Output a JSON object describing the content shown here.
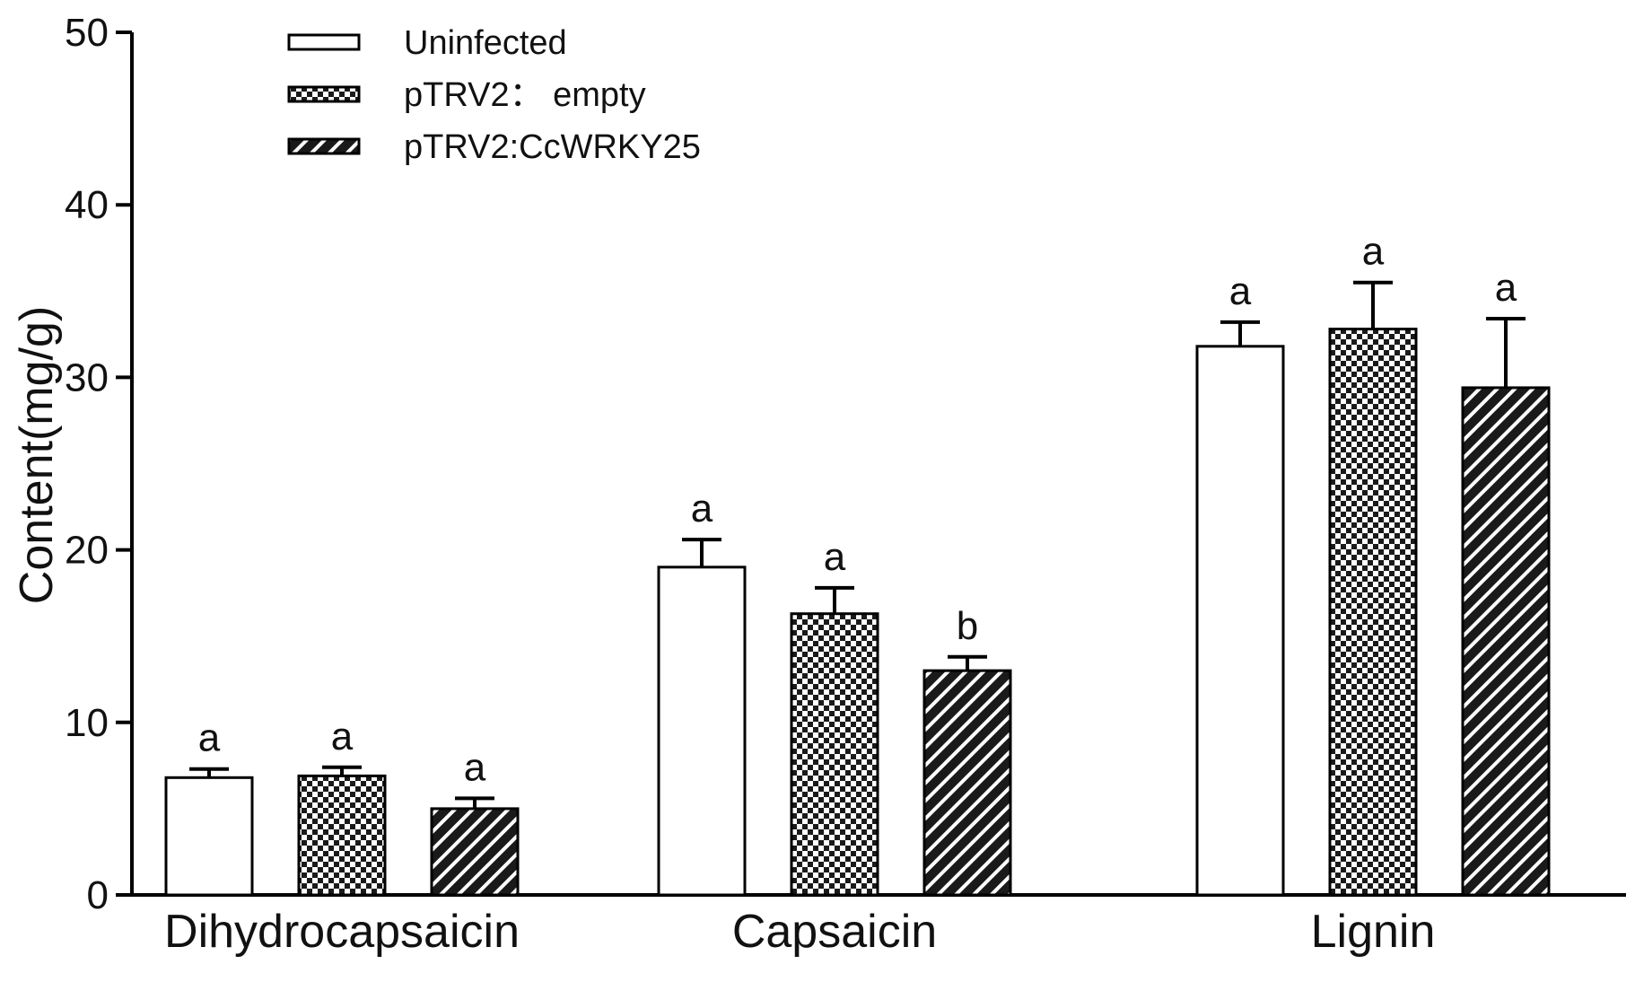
{
  "chart_data": {
    "type": "bar",
    "title": "",
    "xlabel": "",
    "ylabel": "Content(mg/g)",
    "ylim": [
      0,
      50
    ],
    "yticks": [
      0,
      10,
      20,
      30,
      40,
      50
    ],
    "categories": [
      "Dihydrocapsaicin",
      "Capsaicin",
      "Lignin"
    ],
    "legend_position": "top-left",
    "series": [
      {
        "name": "Uninfected",
        "pattern": "white",
        "values": [
          6.8,
          19.0,
          31.8
        ],
        "errors": [
          0.5,
          1.6,
          1.4
        ],
        "labels": [
          "a",
          "a",
          "a"
        ]
      },
      {
        "name": "pTRV2： empty",
        "pattern": "checker",
        "values": [
          6.9,
          16.3,
          32.8
        ],
        "errors": [
          0.5,
          1.5,
          2.7
        ],
        "labels": [
          "a",
          "a",
          "a"
        ]
      },
      {
        "name": "pTRV2:CcWRKY25",
        "pattern": "diagonal",
        "values": [
          5.0,
          13.0,
          29.4
        ],
        "errors": [
          0.6,
          0.8,
          4.0
        ],
        "labels": [
          "a",
          "b",
          "a"
        ]
      }
    ]
  }
}
